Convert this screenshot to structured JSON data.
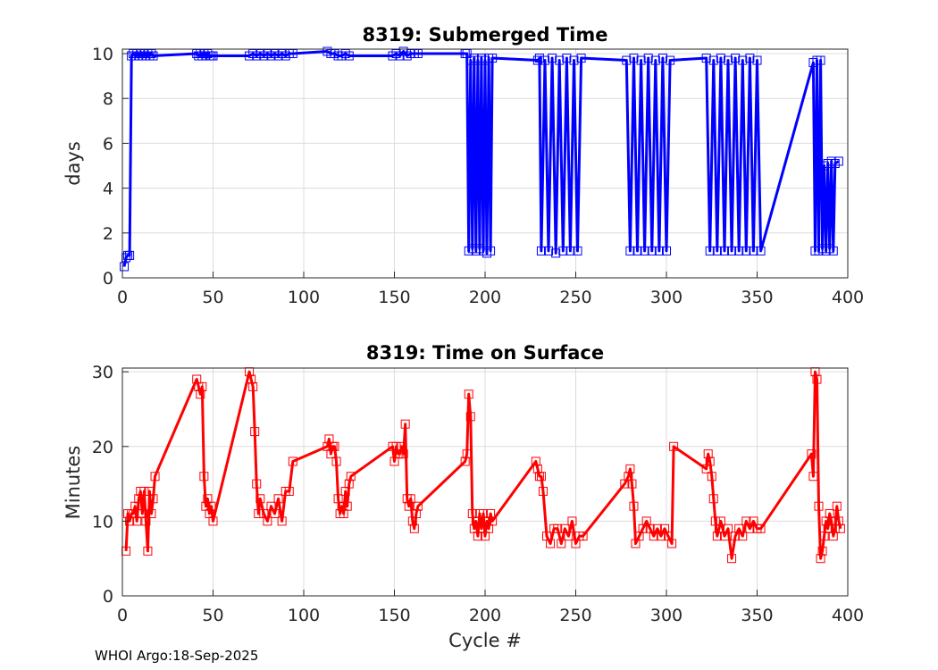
{
  "chart_data": [
    {
      "type": "line",
      "title": "8319: Submerged Time",
      "xlabel": "",
      "ylabel": "days",
      "xlim": [
        0,
        400
      ],
      "ylim": [
        0,
        10.2
      ],
      "xticks": [
        "0",
        "50",
        "100",
        "150",
        "200",
        "250",
        "300",
        "350",
        "400"
      ],
      "yticks": [
        "0",
        "2",
        "4",
        "6",
        "8",
        "10"
      ],
      "xtick_values": [
        0,
        50,
        100,
        150,
        200,
        250,
        300,
        350,
        400
      ],
      "ytick_values": [
        0,
        2,
        4,
        6,
        8,
        10
      ],
      "grid": true,
      "series": [
        {
          "name": "Submerged Time",
          "color": "#0000ff",
          "marker": "square",
          "x": [
            1,
            2,
            3,
            4,
            5,
            6,
            7,
            8,
            9,
            10,
            11,
            12,
            13,
            14,
            15,
            16,
            17,
            41,
            42,
            43,
            44,
            45,
            46,
            47,
            48,
            49,
            50,
            70,
            72,
            74,
            76,
            78,
            80,
            82,
            84,
            86,
            88,
            90,
            92,
            94,
            113,
            115,
            117,
            119,
            121,
            123,
            125,
            149,
            151,
            153,
            155,
            157,
            159,
            161,
            163,
            189,
            190,
            191,
            192,
            193,
            194,
            195,
            196,
            197,
            198,
            199,
            200,
            201,
            202,
            203,
            204,
            229,
            230,
            231,
            233,
            235,
            237,
            239,
            241,
            243,
            245,
            247,
            249,
            251,
            253,
            278,
            280,
            282,
            284,
            286,
            288,
            290,
            292,
            294,
            296,
            298,
            300,
            302,
            322,
            324,
            326,
            328,
            330,
            332,
            334,
            336,
            338,
            340,
            342,
            344,
            346,
            348,
            350,
            352,
            381,
            382,
            383,
            384,
            385,
            386,
            387,
            388,
            389,
            390,
            391,
            392,
            393,
            395
          ],
          "y": [
            0.5,
            0.9,
            1.0,
            1.0,
            9.9,
            10.0,
            9.9,
            10.0,
            9.9,
            10.0,
            9.9,
            10.0,
            9.9,
            10.0,
            9.9,
            10.0,
            9.9,
            10.0,
            9.9,
            10.0,
            9.9,
            10.0,
            9.9,
            10.0,
            9.9,
            9.9,
            9.9,
            9.9,
            10.0,
            9.9,
            10.0,
            9.9,
            10.0,
            9.9,
            10.0,
            9.9,
            10.0,
            9.9,
            10.0,
            10.0,
            10.1,
            10.0,
            10.0,
            9.9,
            9.9,
            10.0,
            9.9,
            9.9,
            10.0,
            9.9,
            10.1,
            9.9,
            10.0,
            10.0,
            10.0,
            10.0,
            10.0,
            1.2,
            9.7,
            1.3,
            9.8,
            1.2,
            9.7,
            1.3,
            9.8,
            1.2,
            9.7,
            1.1,
            9.8,
            1.2,
            9.8,
            9.7,
            9.8,
            1.2,
            9.7,
            1.2,
            9.8,
            1.1,
            9.7,
            1.2,
            9.8,
            1.2,
            9.7,
            1.2,
            9.8,
            9.7,
            1.2,
            9.8,
            1.2,
            9.7,
            1.2,
            9.8,
            1.2,
            9.7,
            1.2,
            9.8,
            1.2,
            9.7,
            9.8,
            1.2,
            9.7,
            1.2,
            9.8,
            1.2,
            9.7,
            1.2,
            9.8,
            1.2,
            9.7,
            1.2,
            9.8,
            1.2,
            9.7,
            1.2,
            9.6,
            1.2,
            9.7,
            1.2,
            9.7,
            1.3,
            5.0,
            1.2,
            5.1,
            1.3,
            5.2,
            1.2,
            5.1,
            5.2
          ]
        }
      ]
    },
    {
      "type": "line",
      "title": "8319: Time on Surface",
      "xlabel": "Cycle #",
      "ylabel": "Minutes",
      "xlim": [
        0,
        400
      ],
      "ylim": [
        0,
        30.5
      ],
      "xticks": [
        "0",
        "50",
        "100",
        "150",
        "200",
        "250",
        "300",
        "350",
        "400"
      ],
      "yticks": [
        "0",
        "10",
        "20",
        "30"
      ],
      "xtick_values": [
        0,
        50,
        100,
        150,
        200,
        250,
        300,
        350,
        400
      ],
      "ytick_values": [
        0,
        10,
        20,
        30
      ],
      "grid": true,
      "series": [
        {
          "name": "Time on Surface",
          "color": "#ff0000",
          "marker": "square",
          "x": [
            2,
            3,
            4,
            5,
            6,
            7,
            8,
            9,
            10,
            11,
            12,
            13,
            14,
            15,
            16,
            17,
            18,
            41,
            42,
            43,
            44,
            45,
            46,
            47,
            48,
            49,
            50,
            70,
            71,
            72,
            73,
            74,
            75,
            76,
            78,
            80,
            82,
            84,
            86,
            88,
            90,
            92,
            94,
            113,
            114,
            115,
            116,
            117,
            118,
            119,
            120,
            121,
            122,
            123,
            124,
            125,
            126,
            149,
            150,
            151,
            152,
            153,
            154,
            155,
            156,
            157,
            158,
            159,
            160,
            161,
            162,
            163,
            189,
            190,
            191,
            192,
            193,
            194,
            195,
            196,
            197,
            198,
            199,
            200,
            201,
            202,
            203,
            204,
            228,
            229,
            230,
            231,
            232,
            234,
            236,
            238,
            240,
            242,
            244,
            246,
            248,
            250,
            252,
            254,
            277,
            279,
            280,
            281,
            282,
            283,
            285,
            287,
            289,
            291,
            293,
            295,
            297,
            299,
            301,
            303,
            304,
            322,
            323,
            324,
            325,
            326,
            327,
            328,
            329,
            330,
            332,
            334,
            336,
            338,
            340,
            342,
            344,
            346,
            348,
            350,
            352,
            380,
            381,
            382,
            383,
            384,
            385,
            386,
            387,
            388,
            389,
            390,
            391,
            392,
            393,
            394,
            395,
            396
          ],
          "y": [
            6,
            11,
            10,
            11,
            11,
            12,
            10,
            13,
            14,
            11,
            14,
            10,
            6,
            14,
            11,
            13,
            16,
            29,
            28,
            27,
            28,
            16,
            12,
            13,
            11,
            12,
            10,
            30,
            29,
            28,
            22,
            15,
            11,
            13,
            11,
            10,
            12,
            11,
            13,
            10,
            14,
            14,
            18,
            20,
            21,
            19,
            20,
            20,
            18,
            13,
            11,
            12,
            11,
            14,
            12,
            15,
            16,
            20,
            18,
            20,
            19,
            19,
            20,
            19,
            23,
            13,
            12,
            13,
            10,
            9,
            11,
            12,
            18,
            19,
            27,
            24,
            11,
            9,
            10,
            8,
            11,
            9,
            11,
            8,
            10,
            9,
            11,
            10,
            18,
            17,
            16,
            16,
            14,
            8,
            7,
            9,
            9,
            7,
            9,
            8,
            10,
            7,
            8,
            8,
            15,
            16,
            17,
            15,
            12,
            7,
            8,
            9,
            10,
            9,
            8,
            9,
            8,
            9,
            8,
            7,
            20,
            17,
            19,
            18,
            16,
            13,
            10,
            8,
            9,
            10,
            8,
            9,
            5,
            8,
            9,
            8,
            10,
            9,
            10,
            9,
            9,
            19,
            16,
            30,
            29,
            12,
            5,
            6,
            8,
            10,
            9,
            11,
            10,
            8,
            9,
            12,
            10,
            9
          ]
        }
      ]
    }
  ],
  "footer": "WHOI Argo:18-Sep-2025"
}
